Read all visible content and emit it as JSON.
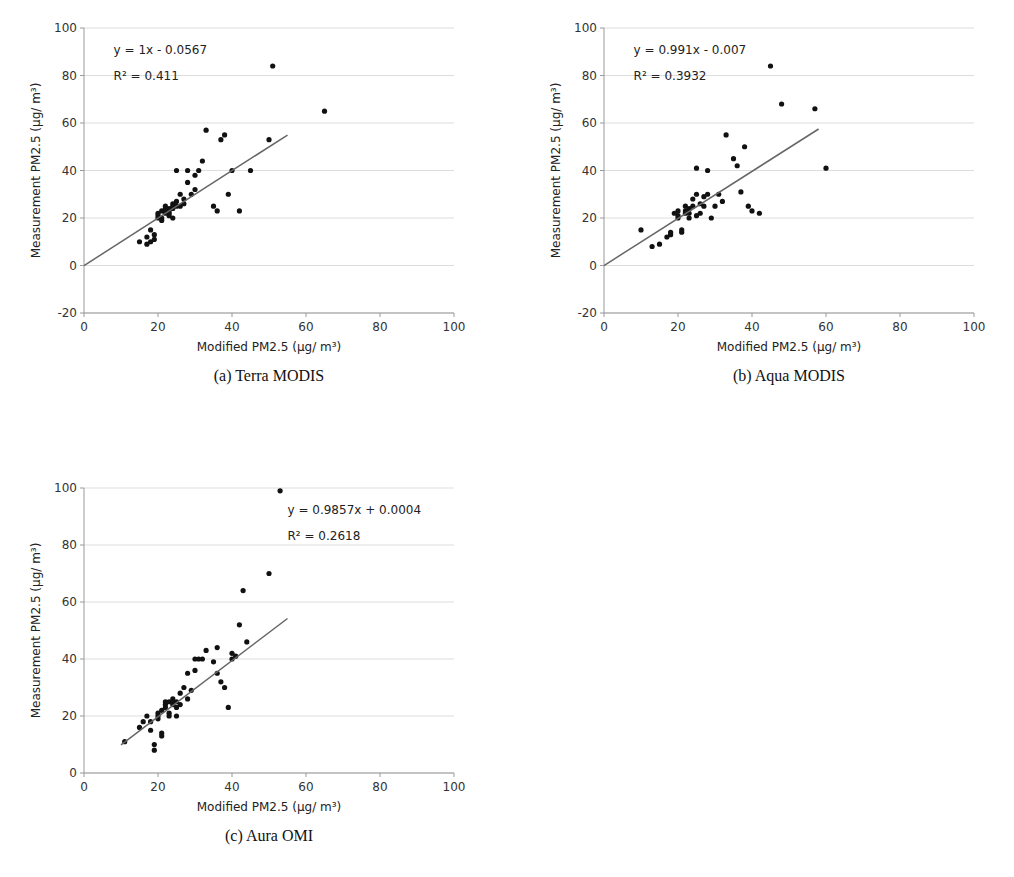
{
  "chart_data": [
    {
      "type": "scatter",
      "title": "(a)  Terra MODIS",
      "xlabel": "Modified PM2.5 (μg/ m³)",
      "ylabel": "Measurement PM2.5 (μg/ m³)",
      "annotations": [
        "y = 1x - 0.0567",
        "R² = 0.411"
      ],
      "xlim": [
        0,
        100
      ],
      "ylim": [
        -20,
        100
      ],
      "xticks": [
        0,
        20,
        40,
        60,
        80,
        100
      ],
      "yticks": [
        -20,
        0,
        20,
        40,
        60,
        80,
        100
      ],
      "grid": true,
      "series": [
        {
          "type": "scatter",
          "color": "#111111",
          "x": [
            15,
            17,
            17,
            18,
            18,
            19,
            19,
            20,
            20,
            20,
            21,
            21,
            21,
            22,
            22,
            22,
            23,
            23,
            23,
            23,
            24,
            24,
            24,
            24,
            25,
            25,
            25,
            26,
            26,
            27,
            27,
            28,
            28,
            29,
            30,
            30,
            31,
            32,
            33,
            35,
            36,
            37,
            38,
            39,
            40,
            42,
            45,
            50,
            51,
            65
          ],
          "values": [
            10,
            9,
            12,
            10,
            15,
            13,
            11,
            21,
            20,
            22,
            20,
            23,
            19,
            24,
            22,
            25,
            21,
            23,
            24,
            22,
            25,
            24,
            26,
            20,
            25,
            27,
            40,
            30,
            25,
            26,
            28,
            35,
            40,
            30,
            32,
            38,
            40,
            44,
            57,
            25,
            23,
            53,
            55,
            30,
            40,
            23,
            40,
            53,
            84,
            65
          ]
        },
        {
          "type": "line",
          "color": "#666666",
          "x": [
            0,
            55
          ],
          "values": [
            -0.0567,
            54.9433
          ]
        }
      ]
    },
    {
      "type": "scatter",
      "title": "(b)  Aqua MODIS",
      "xlabel": "Modified PM2.5 (μg/ m³)",
      "ylabel": "Measurement PM2.5 (μg/ m³)",
      "annotations": [
        "y = 0.991x - 0.007",
        "R² = 0.3932"
      ],
      "xlim": [
        0,
        100
      ],
      "ylim": [
        -20,
        100
      ],
      "xticks": [
        0,
        20,
        40,
        60,
        80,
        100
      ],
      "yticks": [
        -20,
        0,
        20,
        40,
        60,
        80,
        100
      ],
      "grid": true,
      "series": [
        {
          "type": "scatter",
          "color": "#111111",
          "x": [
            10,
            13,
            15,
            17,
            18,
            18,
            19,
            20,
            20,
            20,
            21,
            21,
            22,
            22,
            22,
            23,
            23,
            23,
            24,
            24,
            25,
            25,
            25,
            26,
            26,
            27,
            27,
            28,
            28,
            29,
            30,
            31,
            32,
            33,
            35,
            36,
            37,
            38,
            39,
            40,
            42,
            45,
            48,
            57,
            60
          ],
          "values": [
            15,
            8,
            9,
            12,
            13,
            14,
            22,
            21,
            23,
            20,
            15,
            14,
            23,
            22,
            25,
            24,
            22,
            20,
            25,
            28,
            21,
            30,
            41,
            22,
            26,
            29,
            25,
            30,
            40,
            20,
            25,
            30,
            27,
            55,
            45,
            42,
            31,
            50,
            25,
            23,
            22,
            84,
            68,
            66,
            41
          ]
        },
        {
          "type": "line",
          "color": "#666666",
          "x": [
            0,
            58
          ],
          "values": [
            -0.007,
            57.471
          ]
        }
      ]
    },
    {
      "type": "scatter",
      "title": "(c)  Aura OMI",
      "xlabel": "Modified PM2.5 (μg/ m³)",
      "ylabel": "Measurement PM2.5 (μg/ m³)",
      "annotations": [
        "y = 0.9857x + 0.0004",
        "R² = 0.2618"
      ],
      "xlim": [
        0,
        100
      ],
      "ylim": [
        0,
        100
      ],
      "xticks": [
        0,
        20,
        40,
        60,
        80,
        100
      ],
      "yticks": [
        0,
        20,
        40,
        60,
        80,
        100
      ],
      "grid": true,
      "series": [
        {
          "type": "scatter",
          "color": "#111111",
          "x": [
            11,
            15,
            16,
            17,
            18,
            18,
            19,
            19,
            20,
            20,
            20,
            21,
            21,
            21,
            22,
            22,
            22,
            23,
            23,
            23,
            24,
            24,
            24,
            25,
            25,
            25,
            26,
            26,
            27,
            28,
            28,
            29,
            30,
            30,
            31,
            32,
            33,
            35,
            36,
            36,
            37,
            38,
            39,
            40,
            40,
            41,
            42,
            43,
            44,
            50,
            53
          ],
          "values": [
            11,
            16,
            18,
            20,
            15,
            18,
            8,
            10,
            21,
            19,
            20,
            22,
            14,
            13,
            24,
            23,
            25,
            21,
            20,
            25,
            26,
            25,
            24,
            20,
            23,
            25,
            24,
            28,
            30,
            26,
            35,
            29,
            36,
            40,
            40,
            40,
            43,
            39,
            44,
            35,
            32,
            30,
            23,
            40,
            42,
            41,
            52,
            64,
            46,
            70,
            99
          ]
        },
        {
          "type": "line",
          "color": "#666666",
          "x": [
            10,
            55
          ],
          "values": [
            9.8574,
            54.2139
          ]
        }
      ]
    }
  ]
}
